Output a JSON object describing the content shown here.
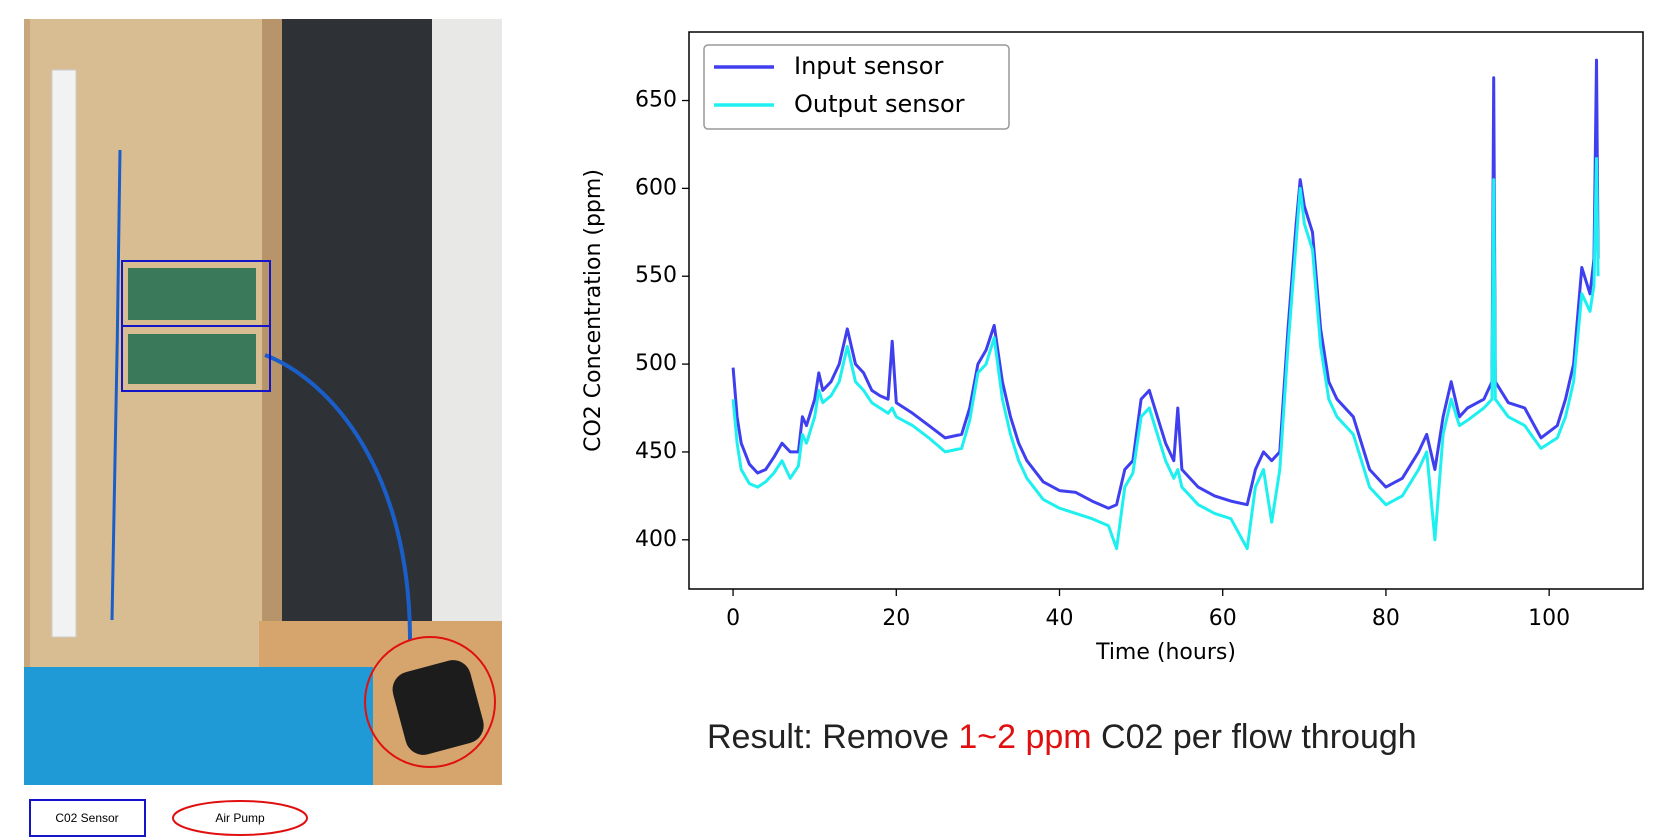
{
  "photo_legend": {
    "sensor": "C02 Sensor",
    "pump": "Air Pump"
  },
  "result": {
    "prefix": "Result: Remove ",
    "highlight": "1~2 ppm",
    "suffix": " C02 per flow through"
  },
  "chart_data": {
    "type": "line",
    "x_label": "Time (hours)",
    "y_label": "CO2 Concentration (ppm)",
    "x": [
      0,
      0.5,
      1,
      2,
      3,
      4,
      5,
      6,
      7,
      8,
      8.5,
      9,
      10,
      10.5,
      11,
      12,
      13,
      14,
      15,
      16,
      17,
      18,
      19,
      19.5,
      20,
      22,
      24,
      26,
      28,
      29,
      30,
      31,
      32,
      33,
      34,
      35,
      36,
      38,
      40,
      42,
      44,
      46,
      47,
      48,
      49,
      50,
      51,
      52,
      53,
      54,
      54.5,
      55,
      57,
      59,
      61,
      63,
      64,
      65,
      66,
      67,
      68,
      69,
      69.5,
      70,
      71,
      72,
      73,
      74,
      76,
      78,
      80,
      82,
      84,
      85,
      86,
      87,
      88,
      89,
      90,
      92,
      93,
      93.2,
      93.4,
      95,
      97,
      99,
      101,
      102,
      103,
      104,
      105,
      105.5,
      105.8,
      106
    ],
    "series": [
      {
        "name": "Input sensor",
        "color": "#3f3ff0",
        "values": [
          498,
          470,
          455,
          443,
          438,
          440,
          447,
          455,
          450,
          450,
          470,
          465,
          480,
          495,
          485,
          490,
          500,
          520,
          500,
          495,
          485,
          482,
          480,
          513,
          478,
          472,
          465,
          458,
          460,
          475,
          500,
          508,
          522,
          490,
          470,
          455,
          445,
          433,
          428,
          427,
          422,
          418,
          420,
          440,
          445,
          480,
          485,
          470,
          455,
          445,
          475,
          440,
          430,
          425,
          422,
          420,
          440,
          450,
          445,
          450,
          520,
          580,
          605,
          590,
          575,
          520,
          490,
          480,
          470,
          440,
          430,
          435,
          450,
          460,
          440,
          470,
          490,
          470,
          475,
          480,
          490,
          663,
          490,
          478,
          475,
          458,
          465,
          480,
          500,
          555,
          540,
          560,
          673,
          560
        ]
      },
      {
        "name": "Output sensor",
        "color": "#1ef0f0",
        "values": [
          480,
          455,
          440,
          432,
          430,
          433,
          438,
          445,
          435,
          442,
          460,
          455,
          470,
          485,
          478,
          482,
          490,
          510,
          490,
          485,
          478,
          475,
          472,
          475,
          470,
          465,
          458,
          450,
          452,
          468,
          495,
          500,
          515,
          480,
          460,
          445,
          435,
          423,
          418,
          415,
          412,
          408,
          395,
          430,
          438,
          470,
          475,
          460,
          445,
          435,
          440,
          430,
          420,
          415,
          412,
          395,
          430,
          440,
          410,
          440,
          510,
          570,
          600,
          580,
          565,
          510,
          480,
          470,
          460,
          430,
          420,
          425,
          440,
          450,
          400,
          460,
          480,
          465,
          468,
          475,
          480,
          605,
          480,
          470,
          465,
          452,
          458,
          470,
          490,
          540,
          530,
          545,
          617,
          550
        ]
      }
    ],
    "xlim": [
      -5.4,
      111.5
    ],
    "ylim": [
      372,
      689
    ],
    "xticks": [
      0,
      20,
      40,
      60,
      80,
      100
    ],
    "yticks": [
      400,
      450,
      500,
      550,
      600,
      650
    ],
    "legend": "upper left",
    "grid": false
  }
}
